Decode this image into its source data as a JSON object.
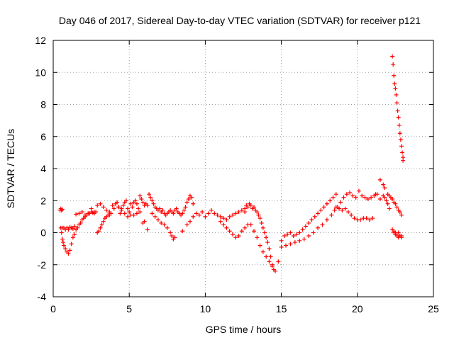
{
  "chart_data": {
    "type": "scatter",
    "title": "Day 046 of 2017, Sidereal Day-to-day VTEC variation (SDTVAR) for receiver p121",
    "xlabel": "GPS time / hours",
    "ylabel": "SDTVAR / TECUs",
    "xlim": [
      0,
      25
    ],
    "ylim": [
      -4,
      12
    ],
    "xticks": [
      0,
      5,
      10,
      15,
      20,
      25
    ],
    "yticks": [
      -4,
      -2,
      0,
      2,
      4,
      6,
      8,
      10,
      12
    ],
    "xtick_labels": [
      "0",
      "5",
      "10",
      "15",
      "20",
      "25"
    ],
    "ytick_labels": [
      "-4",
      "-2",
      "0",
      "2",
      "4",
      "6",
      "8",
      "10",
      "12"
    ],
    "grid": true,
    "marker": "+",
    "color": "#ff0000",
    "series": [
      {
        "name": "SDTVAR p121",
        "x": [
          0.45,
          0.5,
          0.55,
          0.6,
          0.5,
          0.55,
          0.6,
          0.65,
          0.7,
          0.8,
          0.9,
          1.0,
          1.1,
          1.2,
          1.3,
          1.4,
          0.6,
          0.7,
          0.8,
          0.9,
          1.0,
          1.1,
          1.2,
          1.3,
          1.4,
          1.5,
          1.6,
          1.7,
          1.8,
          1.9,
          2.0,
          2.1,
          2.2,
          2.3,
          2.4,
          2.5,
          2.6,
          2.7,
          2.8,
          2.9,
          3.0,
          3.1,
          3.2,
          3.3,
          3.4,
          3.5,
          3.6,
          3.7,
          3.8,
          1.5,
          1.7,
          1.9,
          2.1,
          2.3,
          2.5,
          2.7,
          2.9,
          3.1,
          3.3,
          3.5,
          3.7,
          3.9,
          4.0,
          4.1,
          4.2,
          4.3,
          4.4,
          4.5,
          4.6,
          4.7,
          4.8,
          4.9,
          5.0,
          5.1,
          5.2,
          5.3,
          5.4,
          5.5,
          5.6,
          5.7,
          5.8,
          5.9,
          6.0,
          6.1,
          6.2,
          4.3,
          4.5,
          4.7,
          4.9,
          5.1,
          5.3,
          5.5,
          5.7,
          5.9,
          6.0,
          6.2,
          6.3,
          6.4,
          6.5,
          6.6,
          6.7,
          6.8,
          6.9,
          7.0,
          7.1,
          7.2,
          7.3,
          7.4,
          7.5,
          7.6,
          7.7,
          7.8,
          7.9,
          8.0,
          8.1,
          8.2,
          8.3,
          8.4,
          8.5,
          8.6,
          8.7,
          8.8,
          8.9,
          9.0,
          9.1,
          9.2,
          6.5,
          6.7,
          6.9,
          7.1,
          7.3,
          7.5,
          7.7,
          7.8,
          7.9,
          8.0,
          8.5,
          8.8,
          9.0,
          9.2,
          9.4,
          9.6,
          9.8,
          10.0,
          10.2,
          10.4,
          10.6,
          10.8,
          11.0,
          11.2,
          11.4,
          11.6,
          11.8,
          12.0,
          12.2,
          12.4,
          12.6,
          11.0,
          11.2,
          11.4,
          11.6,
          11.8,
          12.0,
          12.2,
          12.4,
          12.6,
          12.8,
          12.6,
          12.7,
          12.8,
          12.9,
          13.0,
          13.1,
          13.2,
          13.3,
          13.4,
          13.5,
          13.6,
          13.7,
          13.8,
          13.9,
          14.0,
          14.1,
          14.2,
          14.3,
          14.4,
          14.5,
          13.0,
          13.2,
          13.4,
          13.6,
          13.8,
          14.0,
          14.2,
          14.4,
          14.6,
          14.8,
          15.0,
          15.2,
          15.4,
          15.6,
          15.8,
          16.0,
          16.2,
          16.4,
          16.6,
          16.8,
          17.0,
          17.2,
          17.4,
          17.6,
          17.8,
          18.0,
          18.2,
          18.4,
          18.6,
          15.0,
          15.3,
          15.6,
          15.9,
          16.2,
          16.5,
          16.8,
          17.1,
          17.4,
          17.7,
          18.0,
          18.3,
          18.5,
          18.7,
          18.9,
          19.1,
          19.3,
          19.5,
          19.7,
          19.9,
          20.1,
          20.3,
          20.5,
          20.7,
          20.9,
          21.1,
          21.3,
          21.5,
          21.7,
          21.8,
          18.6,
          18.8,
          19.0,
          19.2,
          19.4,
          19.6,
          19.8,
          20.0,
          20.2,
          20.4,
          20.6,
          20.8,
          21.0,
          21.2,
          21.5,
          21.7,
          21.8,
          21.9,
          22.0,
          22.1,
          22.0,
          22.1,
          22.2,
          22.3,
          22.4,
          22.5,
          22.6,
          22.7,
          22.8,
          22.9,
          22.3,
          22.4,
          22.5,
          22.6,
          22.7,
          22.8,
          22.9,
          22.4,
          22.5,
          22.6,
          22.7,
          22.8,
          22.9,
          22.3,
          22.35,
          22.4,
          22.45,
          22.5,
          22.55,
          22.6,
          22.65,
          22.7,
          22.75,
          22.8,
          22.85,
          22.9,
          22.95,
          23.0,
          23.0
        ],
        "y": [
          1.4,
          1.5,
          1.4,
          1.45,
          0.3,
          0.0,
          -0.4,
          -0.6,
          -0.8,
          -1.0,
          -1.2,
          -1.3,
          -1.1,
          -0.7,
          -0.3,
          -0.1,
          0.3,
          0.3,
          0.2,
          0.3,
          0.2,
          0.35,
          0.3,
          0.25,
          0.4,
          0.2,
          0.3,
          0.5,
          0.6,
          0.8,
          0.9,
          1.0,
          1.1,
          1.2,
          1.2,
          1.3,
          1.25,
          1.2,
          1.3,
          0.0,
          0.1,
          0.3,
          0.5,
          0.7,
          0.9,
          1.0,
          1.1,
          1.1,
          1.2,
          1.15,
          1.2,
          1.3,
          1.1,
          1.2,
          1.5,
          1.3,
          1.7,
          1.8,
          1.6,
          1.4,
          1.3,
          1.7,
          1.5,
          1.8,
          1.9,
          1.6,
          1.2,
          1.4,
          1.7,
          1.9,
          2.0,
          1.5,
          1.3,
          1.8,
          1.6,
          1.9,
          2.0,
          1.8,
          1.5,
          2.3,
          2.1,
          1.9,
          1.7,
          1.8,
          1.7,
          1.6,
          1.5,
          1.2,
          1.0,
          1.1,
          1.1,
          1.2,
          1.3,
          0.6,
          0.7,
          0.2,
          2.4,
          2.2,
          2.0,
          1.8,
          1.6,
          1.5,
          1.4,
          1.5,
          1.3,
          1.4,
          1.2,
          1.1,
          1.2,
          1.3,
          1.4,
          1.3,
          1.2,
          1.4,
          1.5,
          1.3,
          1.2,
          1.1,
          1.2,
          1.4,
          1.6,
          1.9,
          2.1,
          2.3,
          2.2,
          1.8,
          1.2,
          1.0,
          0.8,
          0.6,
          0.5,
          0.3,
          0.0,
          -0.2,
          -0.4,
          -0.3,
          0.1,
          0.5,
          0.7,
          1.0,
          1.2,
          1.1,
          1.3,
          1.0,
          1.2,
          1.4,
          1.2,
          1.1,
          1.0,
          0.9,
          0.8,
          1.0,
          1.1,
          1.2,
          1.3,
          1.4,
          1.3,
          0.7,
          0.5,
          0.3,
          0.1,
          -0.1,
          -0.3,
          -0.2,
          0.1,
          0.3,
          0.5,
          1.5,
          1.7,
          1.6,
          1.8,
          1.7,
          1.5,
          1.6,
          1.4,
          1.3,
          1.1,
          0.9,
          0.6,
          0.3,
          0.0,
          -0.3,
          -0.6,
          -1.0,
          -1.5,
          -2.0,
          -2.3,
          0.5,
          0.1,
          -0.3,
          -0.8,
          -1.2,
          -1.5,
          -1.8,
          -2.1,
          -2.4,
          -1.8,
          -0.5,
          -0.2,
          -0.1,
          0.0,
          -0.2,
          -0.1,
          0.0,
          0.2,
          0.4,
          0.6,
          0.8,
          1.0,
          1.2,
          1.4,
          1.6,
          1.8,
          2.0,
          2.2,
          2.4,
          -0.9,
          -0.8,
          -0.7,
          -0.6,
          -0.5,
          -0.4,
          -0.2,
          0.0,
          0.3,
          0.5,
          0.8,
          1.1,
          1.4,
          1.6,
          1.9,
          2.2,
          2.4,
          2.5,
          2.3,
          2.2,
          2.6,
          2.3,
          2.2,
          2.1,
          2.2,
          2.3,
          2.4,
          2.1,
          2.3,
          2.2,
          1.6,
          1.5,
          1.4,
          1.5,
          1.3,
          1.1,
          0.9,
          0.8,
          0.8,
          0.9,
          0.9,
          0.8,
          0.9,
          2.4,
          3.3,
          3.0,
          2.8,
          2.0,
          1.8,
          1.5,
          2.4,
          2.3,
          2.2,
          2.1,
          1.9,
          1.8,
          1.6,
          1.4,
          1.3,
          1.1,
          0.2,
          0.0,
          -0.1,
          -0.2,
          -0.3,
          -0.2,
          -0.2,
          0.1,
          0.0,
          -0.1,
          0.0,
          -0.2,
          -0.3,
          11.0,
          10.5,
          9.8,
          9.3,
          9.0,
          8.6,
          8.1,
          7.6,
          7.2,
          6.7,
          6.2,
          5.8,
          5.4,
          5.0,
          4.7,
          4.5
        ]
      }
    ]
  }
}
